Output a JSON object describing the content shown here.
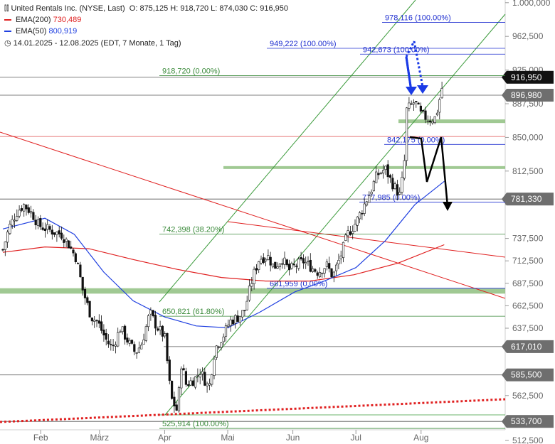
{
  "header": {
    "icon_name": "candlestick-chart-icon",
    "title": "United Rentals Inc. (NYSE, Last)",
    "ohlc": "O: 875,125   H: 918,720   L: 874,030   C: 916,950",
    "ema200_label": "EMA(200)",
    "ema200_value": "730,489",
    "ema50_label": "EMA(50)",
    "ema50_value": "800,919",
    "clock_icon": "clock-icon",
    "period": "14.01.2025 - 12.08.2025",
    "period_note": "(EDT, 7 Monate, 1 Tag)"
  },
  "colors": {
    "ema200": "#e02020",
    "ema50": "#2040e0",
    "channel": "#3a9a3a",
    "fib": "#3a8a3a",
    "fib_blue": "#2030d0",
    "zone": "#8fbf80",
    "arrow_blue": "#1a3ae6",
    "arrow_black": "#000000"
  },
  "chart_data": {
    "type": "candlestick",
    "ylim": [
      512.5,
      1012.5
    ],
    "y_ticks": [
      1000,
      962.5,
      925,
      887.5,
      850,
      812.5,
      775,
      737.5,
      712.5,
      687.5,
      662.5,
      637.5,
      612.5,
      587.5,
      562.5,
      537.5,
      512.5
    ],
    "y_tick_labels": [
      "1.000,000",
      "962,500",
      "925,000",
      "887,500",
      "850,000",
      "812,500",
      "",
      "737,500",
      "712,500",
      "687,500",
      "662,500",
      "637,500",
      "",
      "",
      "562,500",
      "",
      "512,500"
    ],
    "x_labels": [
      {
        "label": "Feb",
        "date": "2025-02-01"
      },
      {
        "label": "März",
        "date": "2025-03-01"
      },
      {
        "label": "Apr",
        "date": "2025-04-01"
      },
      {
        "label": "Mai",
        "date": "2025-05-01"
      },
      {
        "label": "Jun",
        "date": "2025-06-01"
      },
      {
        "label": "Jul",
        "date": "2025-07-01"
      },
      {
        "label": "Aug",
        "date": "2025-08-01"
      }
    ],
    "price_path": [
      [
        "2025-01-14",
        725
      ],
      [
        "2025-01-17",
        750
      ],
      [
        "2025-01-21",
        768
      ],
      [
        "2025-01-24",
        775
      ],
      [
        "2025-01-28",
        765
      ],
      [
        "2025-01-31",
        752
      ],
      [
        "2025-02-04",
        748
      ],
      [
        "2025-02-07",
        745
      ],
      [
        "2025-02-11",
        742
      ],
      [
        "2025-02-14",
        732
      ],
      [
        "2025-02-18",
        715
      ],
      [
        "2025-02-21",
        680
      ],
      [
        "2025-02-25",
        650
      ],
      [
        "2025-02-28",
        645
      ],
      [
        "2025-03-04",
        625
      ],
      [
        "2025-03-07",
        615
      ],
      [
        "2025-03-11",
        638
      ],
      [
        "2025-03-14",
        625
      ],
      [
        "2025-03-18",
        610
      ],
      [
        "2025-03-21",
        620
      ],
      [
        "2025-03-25",
        655
      ],
      [
        "2025-03-28",
        640
      ],
      [
        "2025-04-01",
        628
      ],
      [
        "2025-04-04",
        560
      ],
      [
        "2025-04-07",
        545
      ],
      [
        "2025-04-09",
        600
      ],
      [
        "2025-04-11",
        575
      ],
      [
        "2025-04-15",
        580
      ],
      [
        "2025-04-18",
        590
      ],
      [
        "2025-04-22",
        570
      ],
      [
        "2025-04-25",
        615
      ],
      [
        "2025-04-29",
        630
      ],
      [
        "2025-05-02",
        645
      ],
      [
        "2025-05-06",
        650
      ],
      [
        "2025-05-09",
        657
      ],
      [
        "2025-05-13",
        695
      ],
      [
        "2025-05-16",
        715
      ],
      [
        "2025-05-20",
        718
      ],
      [
        "2025-05-23",
        705
      ],
      [
        "2025-05-27",
        715
      ],
      [
        "2025-05-30",
        702
      ],
      [
        "2025-06-03",
        708
      ],
      [
        "2025-06-06",
        712
      ],
      [
        "2025-06-10",
        705
      ],
      [
        "2025-06-13",
        700
      ],
      [
        "2025-06-17",
        708
      ],
      [
        "2025-06-20",
        695
      ],
      [
        "2025-06-24",
        720
      ],
      [
        "2025-06-27",
        742
      ],
      [
        "2025-07-01",
        755
      ],
      [
        "2025-07-04",
        770
      ],
      [
        "2025-07-08",
        790
      ],
      [
        "2025-07-11",
        808
      ],
      [
        "2025-07-15",
        815
      ],
      [
        "2025-07-18",
        800
      ],
      [
        "2025-07-22",
        785
      ],
      [
        "2025-07-24",
        820
      ],
      [
        "2025-07-25",
        880
      ],
      [
        "2025-07-29",
        890
      ],
      [
        "2025-08-01",
        875
      ],
      [
        "2025-08-05",
        870
      ],
      [
        "2025-08-08",
        872
      ],
      [
        "2025-08-12",
        916.95
      ]
    ],
    "ema50": [
      [
        "2025-01-14",
        748
      ],
      [
        "2025-02-03",
        760
      ],
      [
        "2025-02-17",
        742
      ],
      [
        "2025-03-03",
        700
      ],
      [
        "2025-03-17",
        668
      ],
      [
        "2025-04-01",
        650
      ],
      [
        "2025-04-16",
        640
      ],
      [
        "2025-05-01",
        638
      ],
      [
        "2025-05-16",
        655
      ],
      [
        "2025-06-02",
        678
      ],
      [
        "2025-06-16",
        690
      ],
      [
        "2025-07-01",
        705
      ],
      [
        "2025-07-15",
        735
      ],
      [
        "2025-07-29",
        775
      ],
      [
        "2025-08-12",
        801
      ]
    ],
    "ema200": [
      [
        "2025-01-14",
        722
      ],
      [
        "2025-02-03",
        728
      ],
      [
        "2025-02-24",
        726
      ],
      [
        "2025-03-17",
        714
      ],
      [
        "2025-04-07",
        703
      ],
      [
        "2025-04-28",
        694
      ],
      [
        "2025-05-19",
        690
      ],
      [
        "2025-06-09",
        690
      ],
      [
        "2025-06-30",
        697
      ],
      [
        "2025-07-21",
        710
      ],
      [
        "2025-08-12",
        730.489
      ]
    ],
    "horizontal_levels": [
      {
        "value": 916.95,
        "label": "916,950",
        "style": "dark"
      },
      {
        "value": 896.98,
        "label": "896,980",
        "style": "gray"
      },
      {
        "value": 781.33,
        "label": "781,330",
        "style": "gray"
      },
      {
        "value": 617.01,
        "label": "617,010",
        "style": "gray"
      },
      {
        "value": 585.5,
        "label": "585,500",
        "style": "gray"
      },
      {
        "value": 533.7,
        "label": "533,700",
        "style": "gray"
      }
    ],
    "fib_labels": [
      {
        "text": "918,720 (0.00%)",
        "value": 918.72
      },
      {
        "text": "742,398 (38.20%)",
        "value": 742.398
      },
      {
        "text": "650,821 (61.80%)",
        "value": 650.821
      },
      {
        "text": "525,914 (100.00%)",
        "value": 525.914
      }
    ],
    "fib_blue_labels": [
      {
        "text": "978,116 (100.00%)",
        "value": 978.116
      },
      {
        "text": "949,222 (100.00%)",
        "value": 949.222
      },
      {
        "text": "942,673 (100.00%)",
        "value": 942.673
      },
      {
        "text": "842,175 (0.00%)",
        "value": 842.175
      },
      {
        "text": "777,985 (0.00%)",
        "value": 777.985
      },
      {
        "text": "681,959 (0.00%)",
        "value": 681.959
      }
    ],
    "zones": [
      {
        "from": 866,
        "to": 870
      },
      {
        "from": 815,
        "to": 818
      },
      {
        "from": 676,
        "to": 682
      }
    ],
    "projection_black": [
      [
        "2025-08-13",
        840
      ],
      [
        "2025-08-18",
        838
      ],
      [
        "2025-08-22",
        778
      ],
      [
        "2025-08-27",
        840
      ],
      [
        "2025-09-01",
        742
      ]
    ]
  }
}
